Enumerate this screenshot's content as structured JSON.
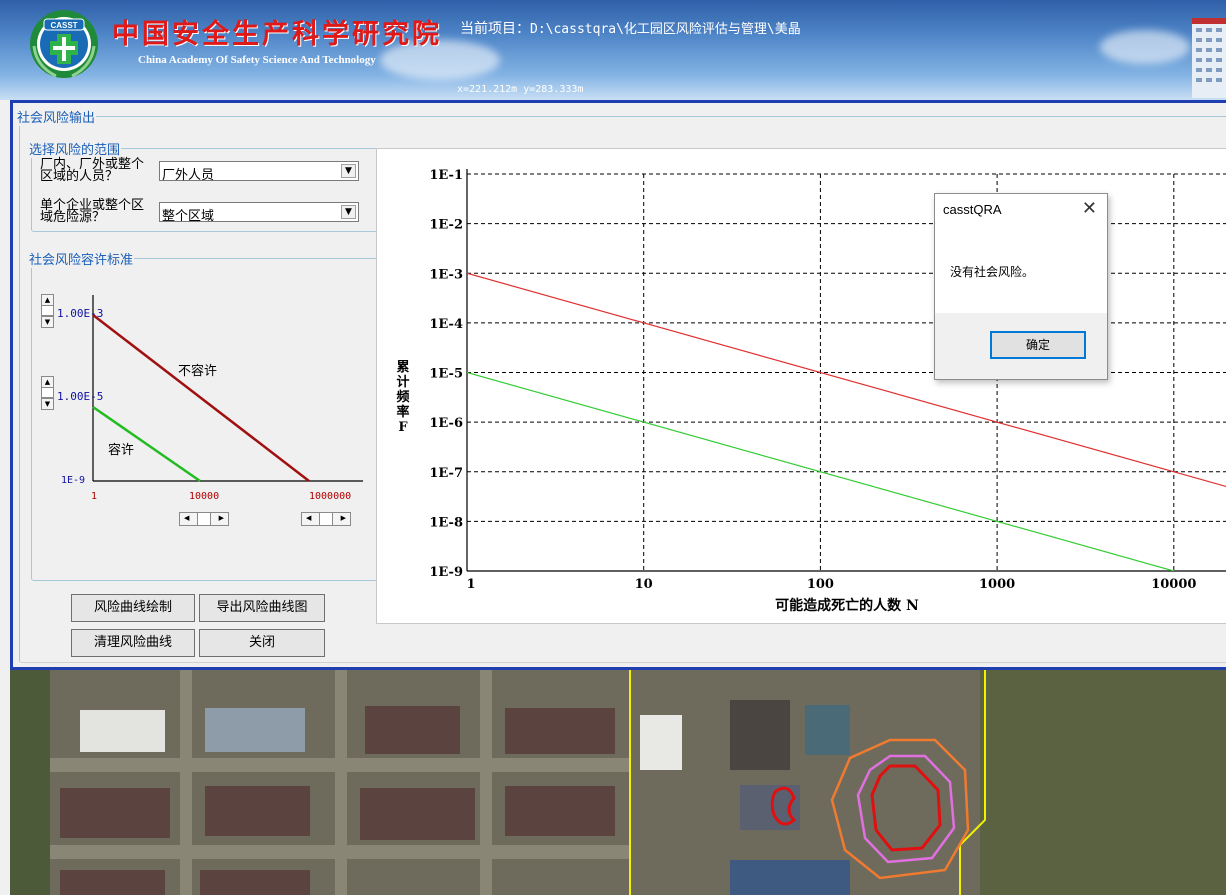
{
  "header": {
    "org_name_cn": "中国安全生产科学研究院",
    "org_name_en": "China Academy Of Safety Science And Technology",
    "logo_text": "CASST",
    "project_label": "当前项目：",
    "project_path": "D:\\casstqra\\化工园区风险评估与管理\\美晶",
    "coords": "x=221.212m  y=283.333m"
  },
  "panel": {
    "title": "社会风险输出",
    "range_group": {
      "title": "选择风险的范围",
      "personnel_label_1": "厂内、厂外或整个",
      "personnel_label_2": "区域的人员？",
      "personnel_value": "厂外人员",
      "source_label_1": "单个企业或整个区",
      "source_label_2": "域危险源？",
      "source_value": "整个区域"
    },
    "standard_group": {
      "title": "社会风险容许标准",
      "upper_value": "1.00E-3",
      "lower_value": "1.00E-5",
      "y_min_label": "1E-9",
      "x_left_label": "1",
      "x_mid_label": "10000",
      "x_right_label": "1000000",
      "intolerable_label": "不容许",
      "tolerable_label": "容许"
    },
    "buttons": {
      "draw": "风险曲线绘制",
      "export": "导出风险曲线图",
      "clear": "清理风险曲线",
      "close": "关闭"
    }
  },
  "chart_data": {
    "type": "line",
    "title": "",
    "xlabel": "可能造成死亡的人数 N",
    "ylabel": "累计频率F",
    "x_scale": "log",
    "y_scale": "log",
    "xlim": [
      1,
      20000
    ],
    "ylim": [
      1e-09,
      0.1
    ],
    "x_ticks": [
      "1",
      "10",
      "100",
      "1000",
      "10000"
    ],
    "y_ticks": [
      "1E-9",
      "1E-8",
      "1E-7",
      "1E-6",
      "1E-5",
      "1E-4",
      "1E-3",
      "1E-2",
      "1E-1"
    ],
    "grid": true,
    "series": [
      {
        "color": "#e03030",
        "x": [
          1,
          20000
        ],
        "y": [
          0.001,
          5e-08
        ]
      },
      {
        "color": "#33cc33",
        "x": [
          1,
          10000
        ],
        "y": [
          1e-05,
          1e-09
        ]
      }
    ]
  },
  "dialog": {
    "title": "casstQRA",
    "message": "没有社会风险。",
    "ok_label": "确定"
  },
  "colors": {
    "accent": "#1f3fb0",
    "group_title": "#1b5fb8",
    "intolerable": "#a01010",
    "tolerable": "#22bb22"
  }
}
